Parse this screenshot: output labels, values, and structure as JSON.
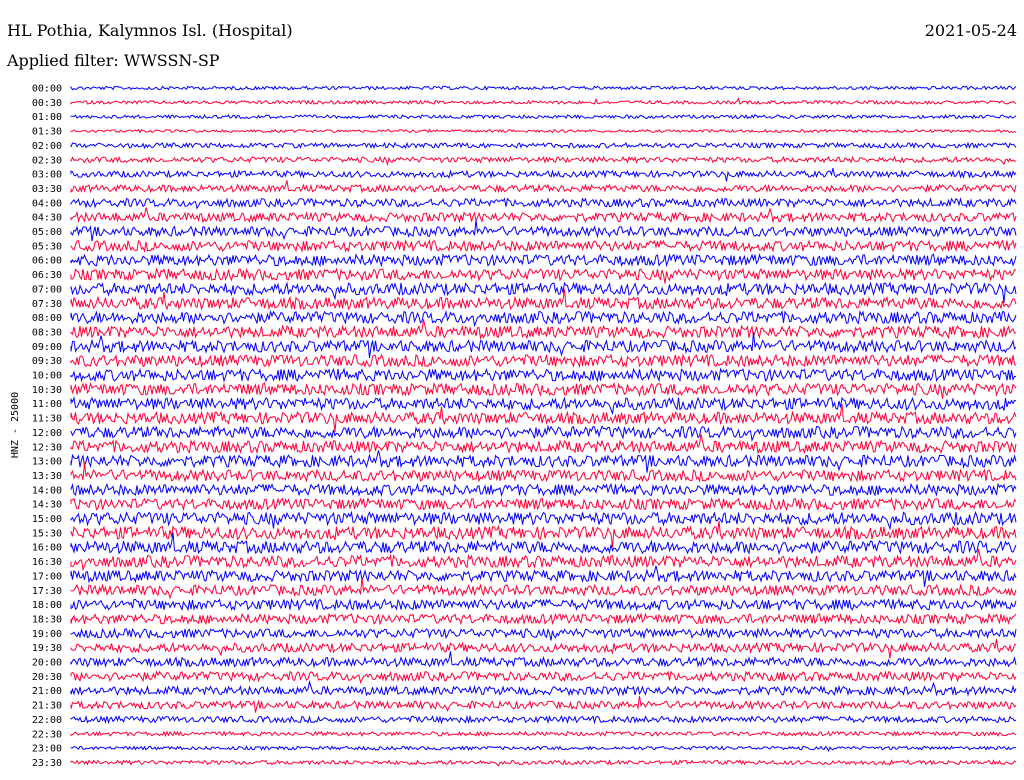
{
  "header": {
    "station": "HL Pothia, Kalymnos Isl. (Hospital)",
    "date": "2021-05-24",
    "filter": "Applied filter: WWSSN-SP"
  },
  "chart_data": {
    "type": "line",
    "title": "",
    "ylabel": "HNZ - 25000",
    "colors": [
      "#0000ff",
      "#ff0033"
    ],
    "rows": [
      {
        "label": "00:00",
        "color": "#0000ff",
        "level": 0.1
      },
      {
        "label": "00:30",
        "color": "#ff0033",
        "level": 0.1
      },
      {
        "label": "01:00",
        "color": "#0000ff",
        "level": 0.1
      },
      {
        "label": "01:30",
        "color": "#ff0033",
        "level": 0.05
      },
      {
        "label": "02:00",
        "color": "#0000ff",
        "level": 0.2
      },
      {
        "label": "02:30",
        "color": "#ff0033",
        "level": 0.25
      },
      {
        "label": "03:00",
        "color": "#0000ff",
        "level": 0.3
      },
      {
        "label": "03:30",
        "color": "#ff0033",
        "level": 0.35
      },
      {
        "label": "04:00",
        "color": "#0000ff",
        "level": 0.45
      },
      {
        "label": "04:30",
        "color": "#ff0033",
        "level": 0.5
      },
      {
        "label": "05:00",
        "color": "#0000ff",
        "level": 0.55
      },
      {
        "label": "05:30",
        "color": "#ff0033",
        "level": 0.6
      },
      {
        "label": "06:00",
        "color": "#0000ff",
        "level": 0.65
      },
      {
        "label": "06:30",
        "color": "#ff0033",
        "level": 0.65
      },
      {
        "label": "07:00",
        "color": "#0000ff",
        "level": 0.7
      },
      {
        "label": "07:30",
        "color": "#ff0033",
        "level": 0.7
      },
      {
        "label": "08:00",
        "color": "#0000ff",
        "level": 0.7
      },
      {
        "label": "08:30",
        "color": "#ff0033",
        "level": 0.7
      },
      {
        "label": "09:00",
        "color": "#0000ff",
        "level": 0.7
      },
      {
        "label": "09:30",
        "color": "#ff0033",
        "level": 0.7
      },
      {
        "label": "10:00",
        "color": "#0000ff",
        "level": 0.7
      },
      {
        "label": "10:30",
        "color": "#ff0033",
        "level": 0.7
      },
      {
        "label": "11:00",
        "color": "#0000ff",
        "level": 0.7
      },
      {
        "label": "11:30",
        "color": "#ff0033",
        "level": 0.7
      },
      {
        "label": "12:00",
        "color": "#0000ff",
        "level": 0.7
      },
      {
        "label": "12:30",
        "color": "#ff0033",
        "level": 0.7
      },
      {
        "label": "13:00",
        "color": "#0000ff",
        "level": 0.7
      },
      {
        "label": "13:30",
        "color": "#ff0033",
        "level": 0.65
      },
      {
        "label": "14:00",
        "color": "#0000ff",
        "level": 0.65
      },
      {
        "label": "14:30",
        "color": "#ff0033",
        "level": 0.65
      },
      {
        "label": "15:00",
        "color": "#0000ff",
        "level": 0.75
      },
      {
        "label": "15:30",
        "color": "#ff0033",
        "level": 0.75
      },
      {
        "label": "16:00",
        "color": "#0000ff",
        "level": 0.75
      },
      {
        "label": "16:30",
        "color": "#ff0033",
        "level": 0.7
      },
      {
        "label": "17:00",
        "color": "#0000ff",
        "level": 0.65
      },
      {
        "label": "17:30",
        "color": "#ff0033",
        "level": 0.6
      },
      {
        "label": "18:00",
        "color": "#0000ff",
        "level": 0.6
      },
      {
        "label": "18:30",
        "color": "#ff0033",
        "level": 0.55
      },
      {
        "label": "19:00",
        "color": "#0000ff",
        "level": 0.5
      },
      {
        "label": "19:30",
        "color": "#ff0033",
        "level": 0.5
      },
      {
        "label": "20:00",
        "color": "#0000ff",
        "level": 0.5
      },
      {
        "label": "20:30",
        "color": "#ff0033",
        "level": 0.5
      },
      {
        "label": "21:00",
        "color": "#0000ff",
        "level": 0.45
      },
      {
        "label": "21:30",
        "color": "#ff0033",
        "level": 0.4
      },
      {
        "label": "22:00",
        "color": "#0000ff",
        "level": 0.3
      },
      {
        "label": "22:30",
        "color": "#ff0033",
        "level": 0.15
      },
      {
        "label": "23:00",
        "color": "#0000ff",
        "level": 0.1
      },
      {
        "label": "23:30",
        "color": "#ff0033",
        "level": 0.15
      }
    ]
  }
}
